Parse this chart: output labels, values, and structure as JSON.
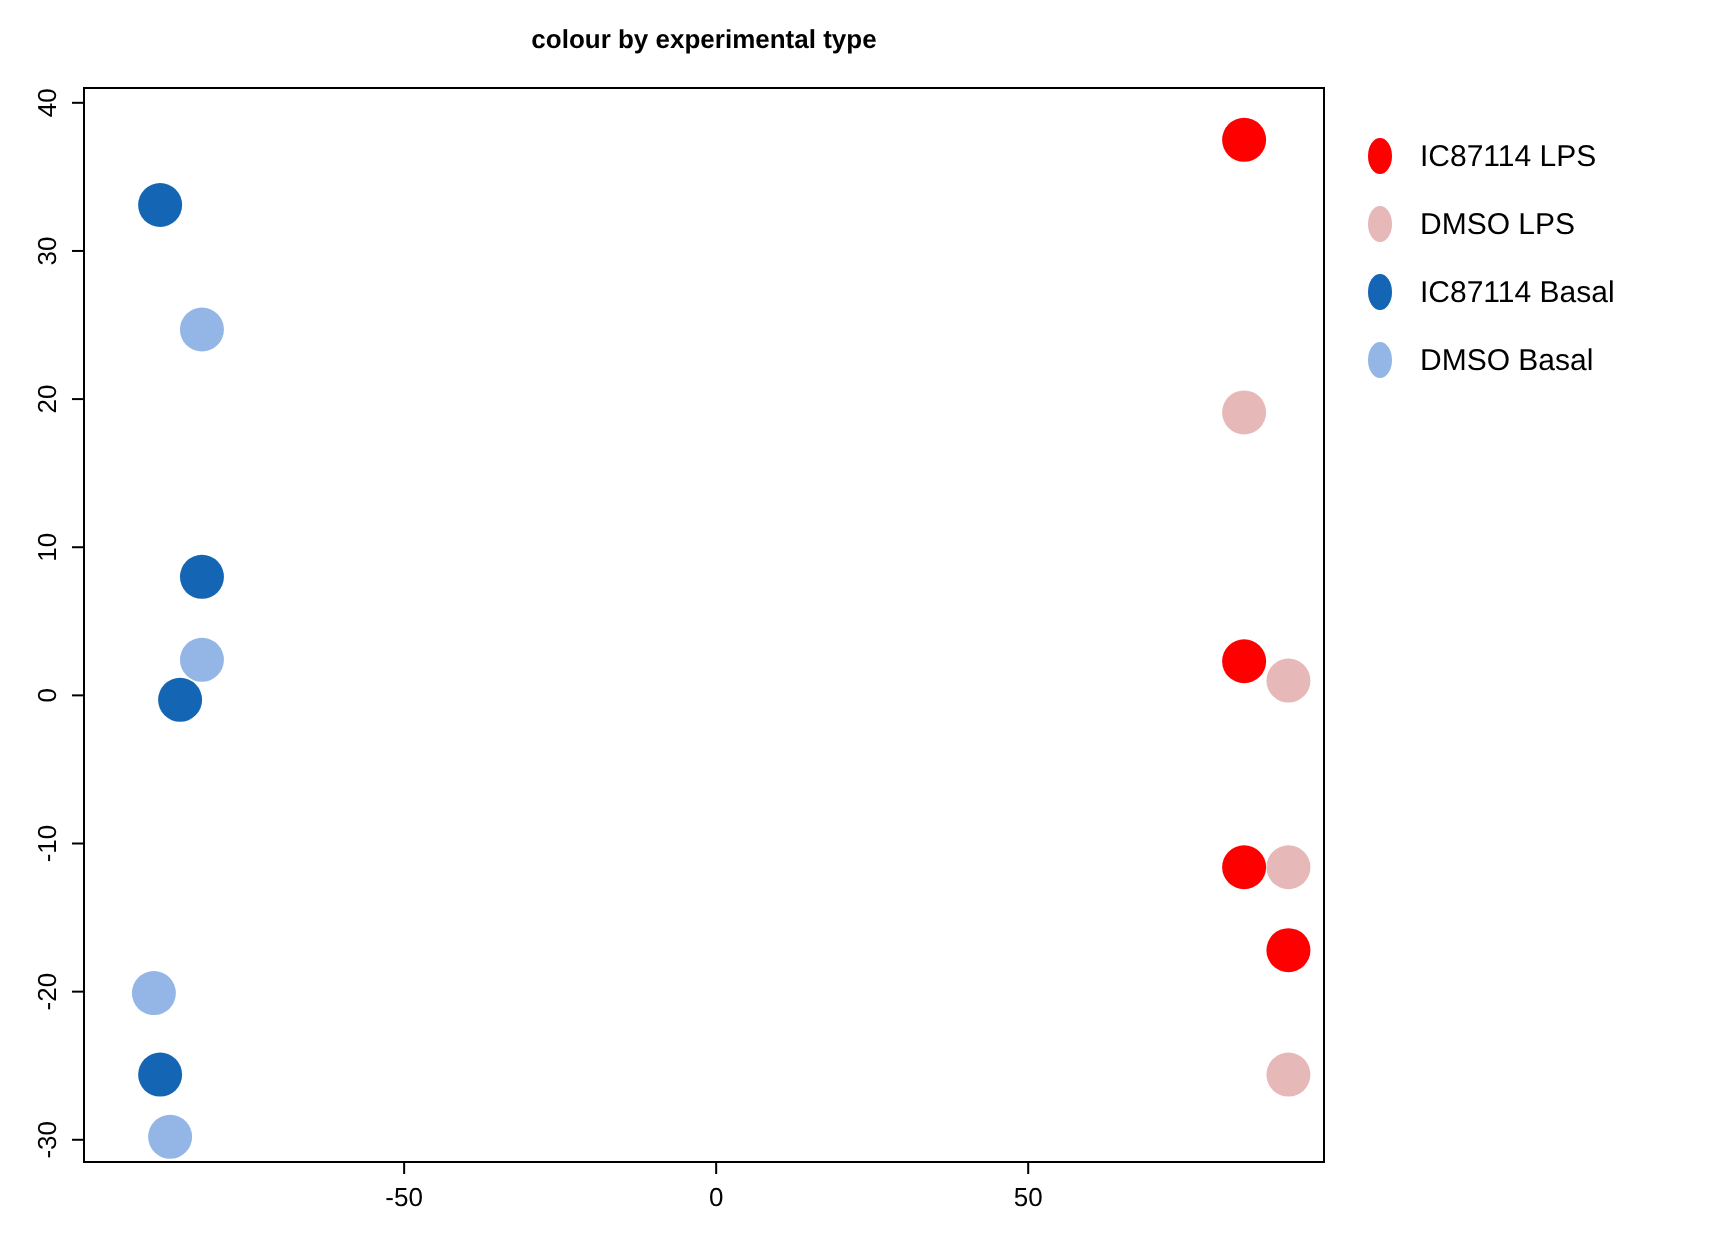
{
  "chart_data": {
    "type": "scatter",
    "title": "colour by experimental type",
    "xlim": [
      -101.3,
      97.4
    ],
    "ylim": [
      -31.5,
      41
    ],
    "xticks": [
      -50,
      0,
      50
    ],
    "yticks": [
      -30,
      -20,
      -10,
      0,
      10,
      20,
      30,
      40
    ],
    "marker": "circle",
    "legend": "top right",
    "grid": false,
    "series": [
      {
        "name": "IC87114 LPS",
        "color": "#ff0000",
        "x": [
          84.6,
          84.6,
          84.6,
          91.7
        ],
        "values": [
          37.5,
          2.3,
          -11.6,
          -17.2
        ]
      },
      {
        "name": "DMSO LPS",
        "color": "#e6b8b8",
        "x": [
          84.6,
          91.7,
          91.7,
          91.7
        ],
        "values": [
          19.1,
          1.0,
          -11.6,
          -25.6
        ]
      },
      {
        "name": "IC87114 Basal",
        "color": "#1565b5",
        "x": [
          -89.1,
          -82.4,
          -85.9,
          -89.1
        ],
        "values": [
          33.1,
          8.0,
          -0.3,
          -25.6
        ]
      },
      {
        "name": "DMSO  Basal",
        "color": "#93b6e6",
        "x": [
          -82.4,
          -82.4,
          -90.1,
          -87.5
        ],
        "values": [
          24.7,
          2.4,
          -20.1,
          -29.8
        ]
      }
    ]
  }
}
